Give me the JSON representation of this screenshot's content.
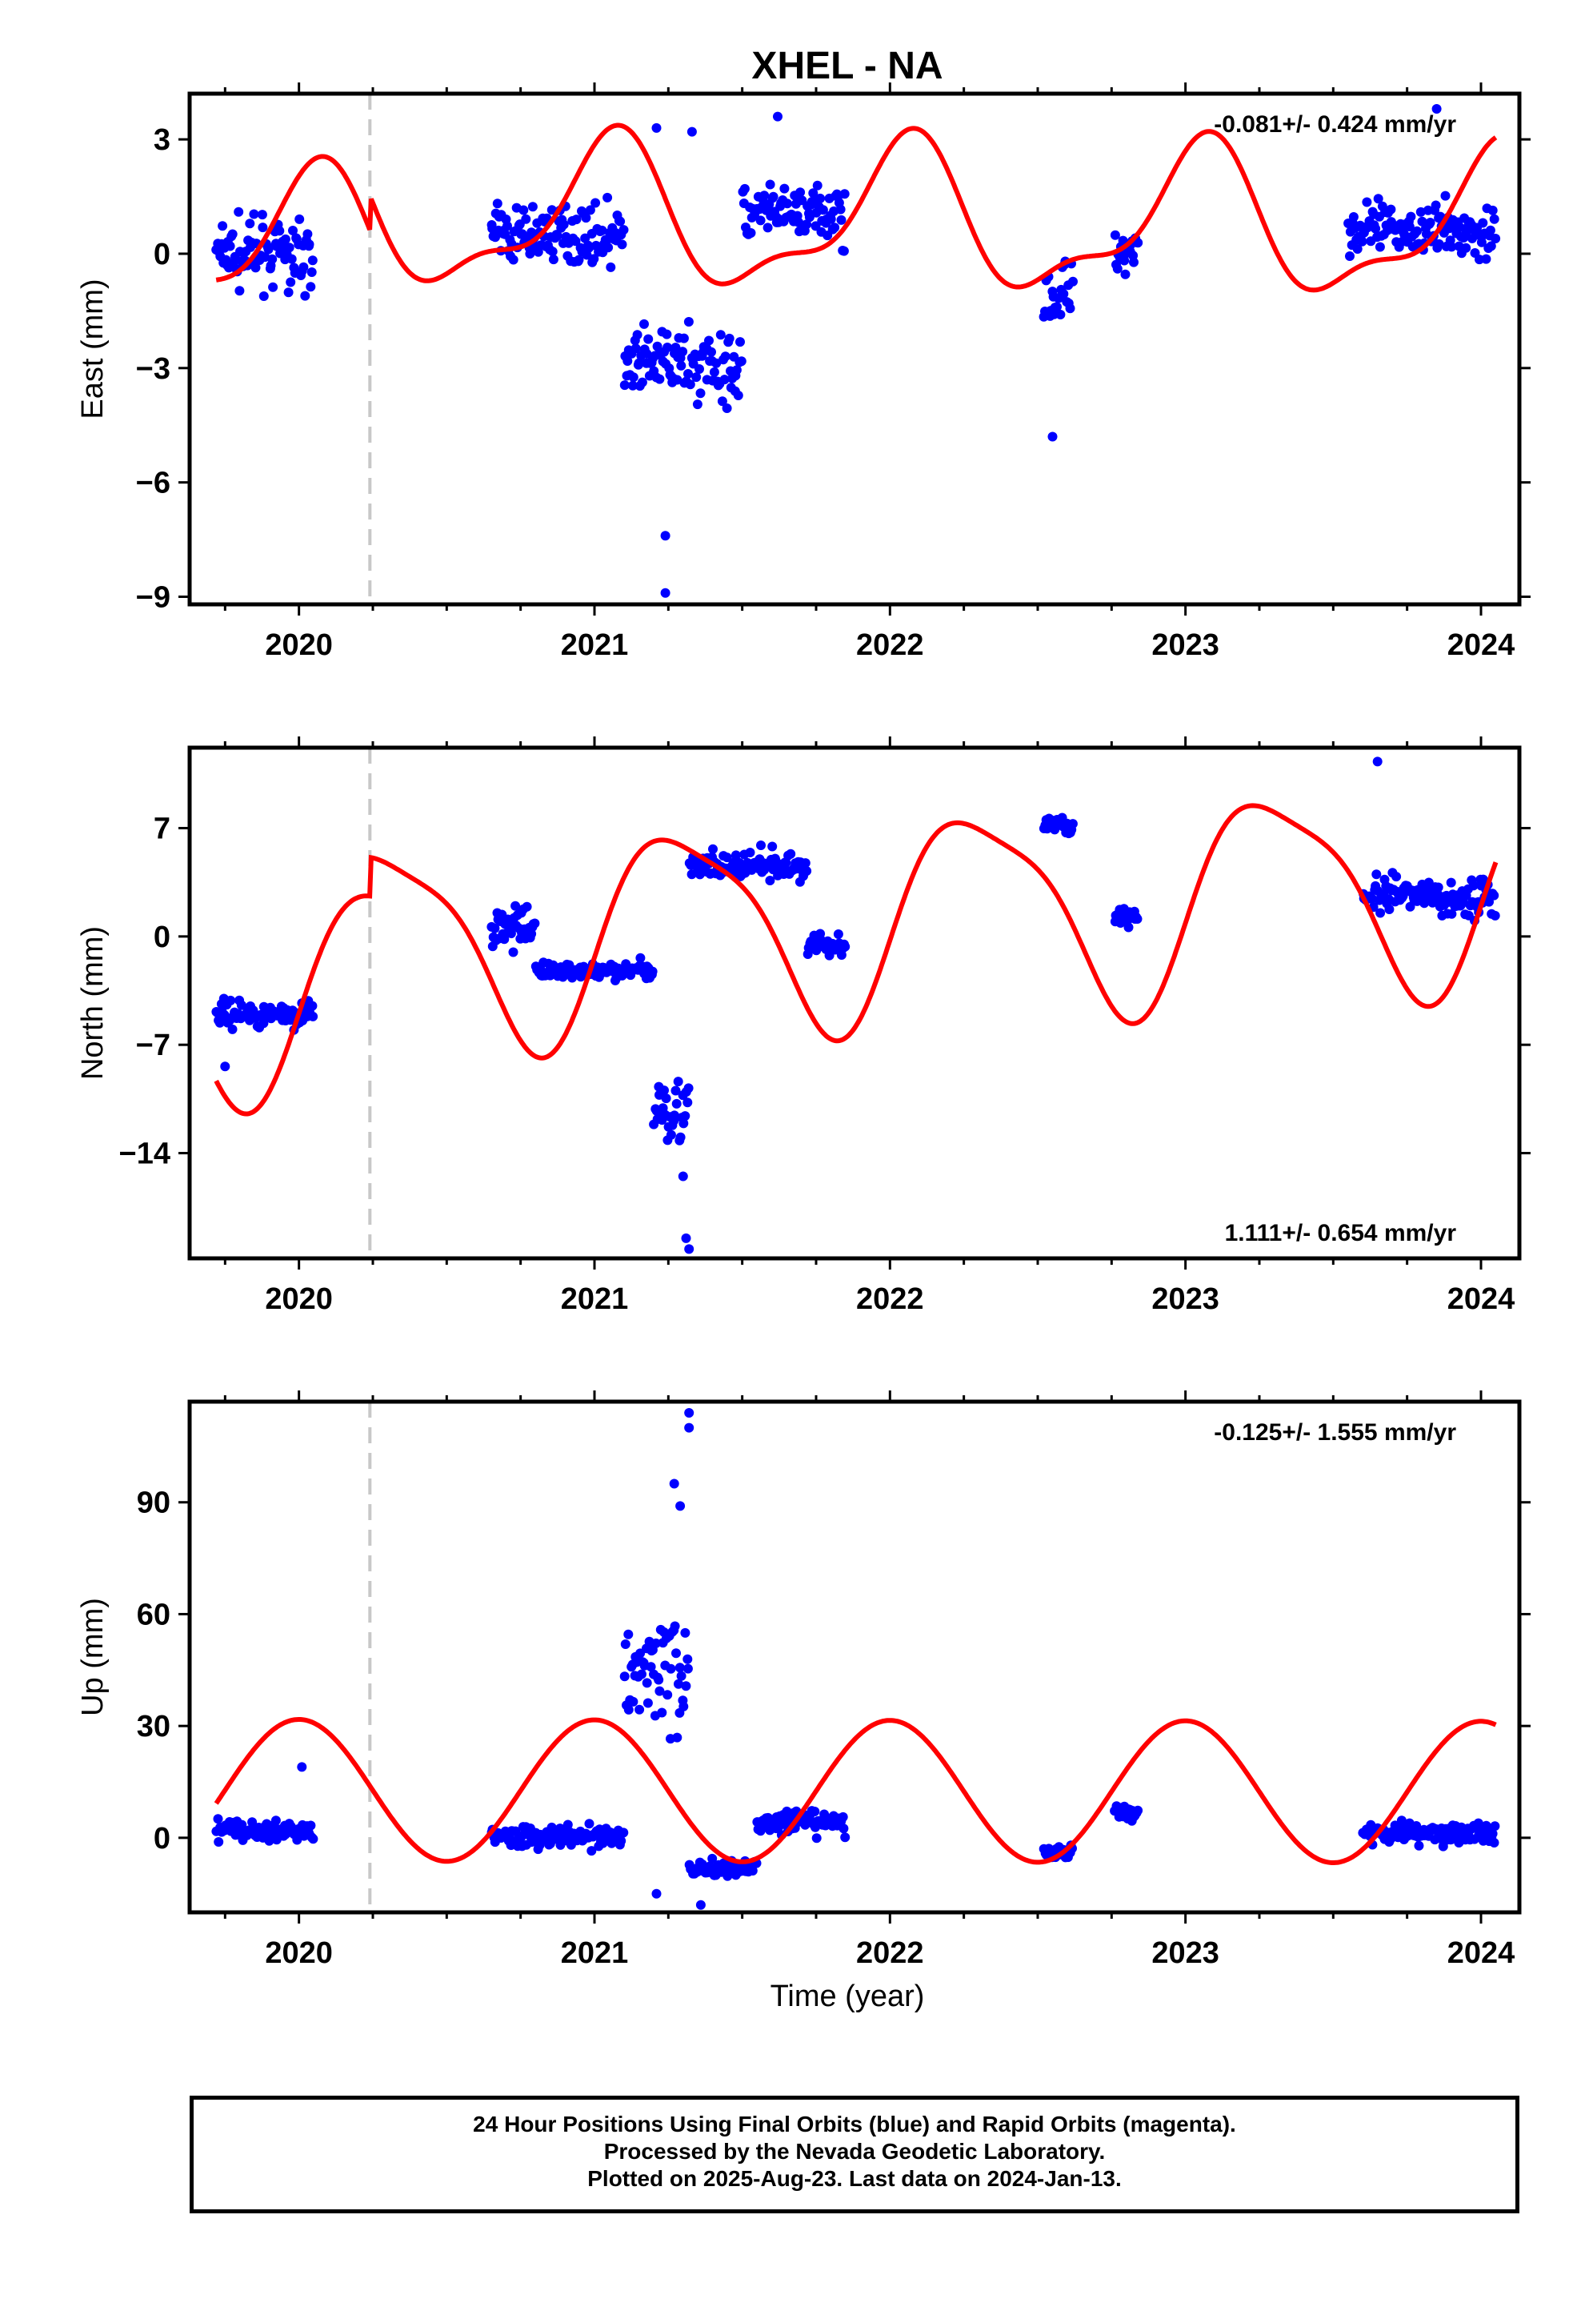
{
  "title": "XHEL - NA",
  "colors": {
    "points": "#0000ff",
    "model": "#ff0000",
    "offset_line": "#c8c8c8"
  },
  "x_axis": {
    "label": "Time (year)",
    "range": [
      2019.63,
      2024.13
    ],
    "ticks": [
      2020,
      2021,
      2022,
      2023,
      2024
    ],
    "tick_labels": [
      "2020",
      "2021",
      "2022",
      "2023",
      "2024"
    ]
  },
  "offset_epoch": 2020.24,
  "footer": {
    "line1": "24 Hour Positions Using Final Orbits (blue) and Rapid Orbits (magenta).",
    "line2": "Processed by the Nevada Geodetic Laboratory.",
    "line3": "Plotted on 2025-Aug-23. Last data on 2024-Jan-13."
  },
  "chart_data": [
    {
      "type": "scatter",
      "component": "East",
      "ylabel": "East (mm)",
      "ylim": [
        -9.2,
        4.2
      ],
      "yticks": [
        3,
        0,
        -3,
        -6,
        -9
      ],
      "ytick_labels": [
        "3",
        "0",
        "−3",
        "−6",
        "−9"
      ],
      "rate_label": "-0.081+/- 0.424 mm/yr",
      "rate_position": "top-right",
      "data_segments": [
        {
          "start": 2019.72,
          "end": 2020.05,
          "center": 0.0,
          "spread": 1.4
        },
        {
          "start": 2020.65,
          "end": 2021.1,
          "center": 0.5,
          "spread": 1.2
        },
        {
          "start": 2021.1,
          "end": 2021.5,
          "center": -2.9,
          "spread": 1.6
        },
        {
          "start": 2021.5,
          "end": 2021.85,
          "center": 1.0,
          "spread": 1.3
        },
        {
          "start": 2022.52,
          "end": 2022.62,
          "center": -1.0,
          "spread": 1.5
        },
        {
          "start": 2022.76,
          "end": 2022.84,
          "center": 0.2,
          "spread": 1.0
        },
        {
          "start": 2023.55,
          "end": 2024.05,
          "center": 0.6,
          "spread": 1.3
        }
      ],
      "extreme_points": [
        {
          "x": 2021.24,
          "y": -8.9
        },
        {
          "x": 2021.24,
          "y": -7.4
        },
        {
          "x": 2021.33,
          "y": 3.2
        },
        {
          "x": 2021.21,
          "y": 3.3
        },
        {
          "x": 2022.55,
          "y": -4.8
        },
        {
          "x": 2021.62,
          "y": 3.6
        },
        {
          "x": 2023.85,
          "y": 3.8
        }
      ],
      "model": {
        "offset": -0.05,
        "trend": -0.081,
        "annual_amp": 1.8,
        "annual_phase": 0.05,
        "semiannual_amp": 0.7,
        "semiannual_phase": 0.6,
        "jump": 0.9
      }
    },
    {
      "type": "scatter",
      "component": "North",
      "ylabel": "North (mm)",
      "ylim": [
        -20.8,
        12.2
      ],
      "yticks": [
        7,
        0,
        -7,
        -14
      ],
      "ytick_labels": [
        "7",
        "0",
        "−7",
        "−14"
      ],
      "rate_label": "1.111+/- 0.654 mm/yr",
      "rate_position": "bottom-right",
      "data_segments": [
        {
          "start": 2019.72,
          "end": 2020.05,
          "center": -5.0,
          "spread": 1.3
        },
        {
          "start": 2020.65,
          "end": 2020.8,
          "center": 0.5,
          "spread": 2.5
        },
        {
          "start": 2020.8,
          "end": 2021.2,
          "center": -2.2,
          "spread": 1.0
        },
        {
          "start": 2021.2,
          "end": 2021.32,
          "center": -11.0,
          "spread": 3.5
        },
        {
          "start": 2021.32,
          "end": 2021.72,
          "center": 4.5,
          "spread": 1.5
        },
        {
          "start": 2021.72,
          "end": 2021.85,
          "center": -0.5,
          "spread": 1.2
        },
        {
          "start": 2022.52,
          "end": 2022.62,
          "center": 7.2,
          "spread": 1.0
        },
        {
          "start": 2022.76,
          "end": 2022.84,
          "center": 1.3,
          "spread": 1.0
        },
        {
          "start": 2023.6,
          "end": 2024.05,
          "center": 2.5,
          "spread": 2.0
        }
      ],
      "extreme_points": [
        {
          "x": 2021.32,
          "y": -20.2
        },
        {
          "x": 2021.31,
          "y": -19.5
        },
        {
          "x": 2021.3,
          "y": -15.5
        },
        {
          "x": 2023.65,
          "y": 11.3
        },
        {
          "x": 2019.75,
          "y": -8.4
        }
      ],
      "model": {
        "offset": -1.2,
        "trend": 1.111,
        "annual_amp": 6.5,
        "annual_phase": 0.3,
        "semiannual_amp": 1.5,
        "semiannual_phase": 0.1,
        "jump": 2.5
      }
    },
    {
      "type": "scatter",
      "component": "Up",
      "ylabel": "Up (mm)",
      "ylim": [
        -20,
        117
      ],
      "yticks": [
        90,
        60,
        30,
        0
      ],
      "ytick_labels": [
        "90",
        "60",
        "30",
        "0"
      ],
      "rate_label": "-0.125+/- 1.555 mm/yr",
      "rate_position": "top-right",
      "data_segments": [
        {
          "start": 2019.72,
          "end": 2020.05,
          "center": 2.0,
          "spread": 5.0
        },
        {
          "start": 2020.65,
          "end": 2021.1,
          "center": 0.5,
          "spread": 5.0
        },
        {
          "start": 2021.1,
          "end": 2021.32,
          "center": 45.0,
          "spread": 28.0
        },
        {
          "start": 2021.32,
          "end": 2021.55,
          "center": -8.0,
          "spread": 5.0
        },
        {
          "start": 2021.55,
          "end": 2021.85,
          "center": 4.0,
          "spread": 5.0
        },
        {
          "start": 2022.52,
          "end": 2022.62,
          "center": -4.0,
          "spread": 3.0
        },
        {
          "start": 2022.76,
          "end": 2022.84,
          "center": 7.0,
          "spread": 4.0
        },
        {
          "start": 2023.6,
          "end": 2024.05,
          "center": 1.5,
          "spread": 5.0
        }
      ],
      "extreme_points": [
        {
          "x": 2021.32,
          "y": 114
        },
        {
          "x": 2021.32,
          "y": 110
        },
        {
          "x": 2021.27,
          "y": 95
        },
        {
          "x": 2021.29,
          "y": 89
        },
        {
          "x": 2021.21,
          "y": -15
        },
        {
          "x": 2021.36,
          "y": -18
        },
        {
          "x": 2020.01,
          "y": 19
        }
      ],
      "model": {
        "offset": 12.5,
        "trend": -0.125,
        "annual_amp": 19.0,
        "annual_phase": 0.0,
        "semiannual_amp": 0.0,
        "semiannual_phase": 0.0,
        "jump": 0.0
      }
    }
  ]
}
